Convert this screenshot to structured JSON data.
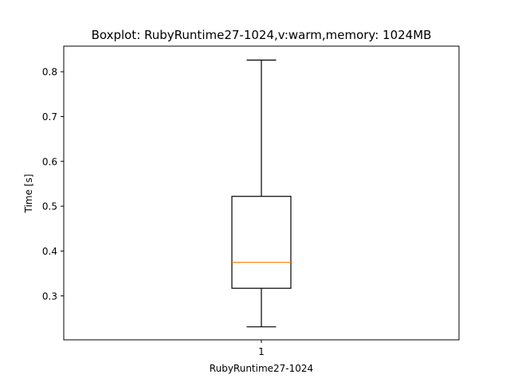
{
  "chart_data": {
    "type": "boxplot",
    "title": "Boxplot: RubyRuntime27-1024,v:warm,memory: 1024MB",
    "xlabel": "RubyRuntime27-1024",
    "ylabel": "Time [s]",
    "categories": [
      "1"
    ],
    "ylim": [
      0.202,
      0.857
    ],
    "yticks": [
      0.3,
      0.4,
      0.5,
      0.6,
      0.7,
      0.8
    ],
    "ytick_labels": [
      "0.3",
      "0.4",
      "0.5",
      "0.6",
      "0.7",
      "0.8"
    ],
    "grid": false,
    "boxes": [
      {
        "category": "1",
        "whisker_low": 0.231,
        "q1": 0.317,
        "median": 0.375,
        "q3": 0.522,
        "whisker_high": 0.826
      }
    ],
    "colors": {
      "box": "#000000",
      "median": "#ff7f0e",
      "background": "#ffffff"
    }
  }
}
